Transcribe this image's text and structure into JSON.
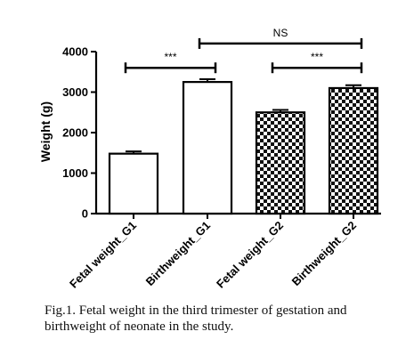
{
  "chart_data": {
    "type": "bar",
    "categories": [
      "Fetal weight_G1",
      "Birthweight_G1",
      "Fetal weight_G2",
      "Birthweight_G2"
    ],
    "values": [
      1480,
      3250,
      2500,
      3100
    ],
    "error": [
      55,
      70,
      60,
      70
    ],
    "fills": [
      "white",
      "white",
      "checker",
      "checker"
    ],
    "ylabel": "Weight (g)",
    "ylim": [
      0,
      4000
    ],
    "yticks": [
      0,
      1000,
      2000,
      3000,
      4000
    ],
    "ytick_labels": [
      "0",
      "1000",
      "2000",
      "3000",
      "4000"
    ],
    "grid": false,
    "significance": [
      {
        "from": 0,
        "to": 1,
        "label": "***",
        "y": 3600
      },
      {
        "from": 1,
        "to": 3,
        "label": "NS",
        "y": 4200
      },
      {
        "from": 2,
        "to": 3,
        "label": "***",
        "y": 3600
      }
    ]
  },
  "caption": "Fig.1. Fetal weight in the third trimester of gestation and birthweight of neonate in the study."
}
